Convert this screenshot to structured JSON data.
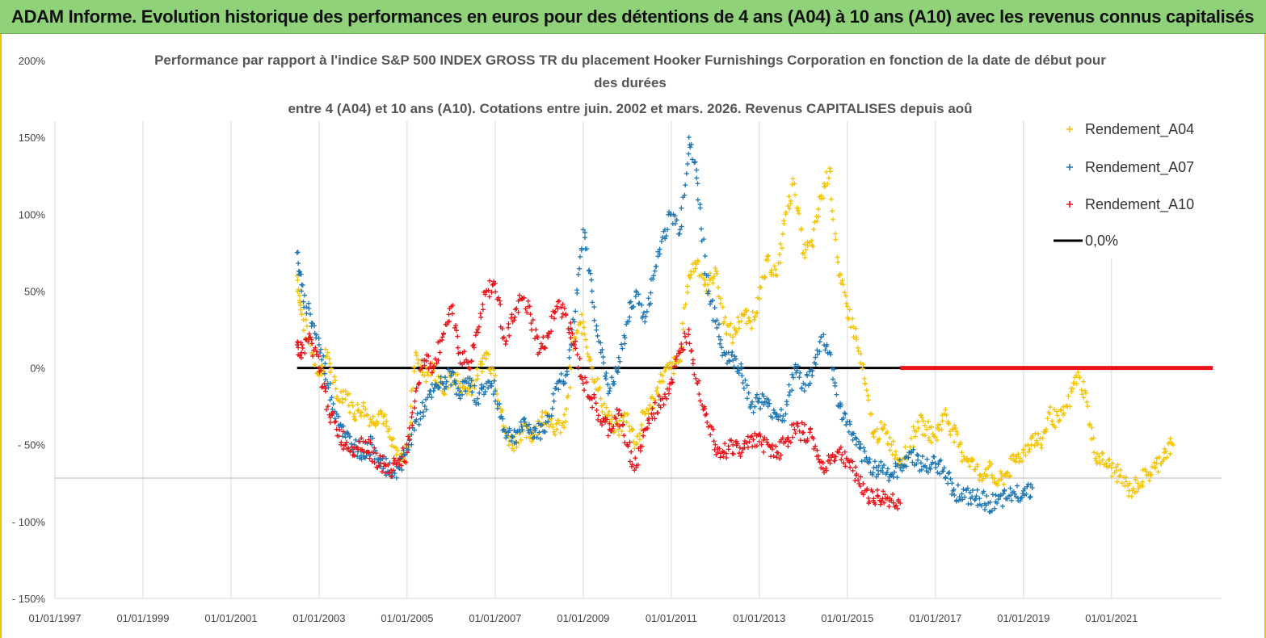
{
  "banner": {
    "title": "ADAM Informe. Evolution historique des performances en euros pour des détentions de 4 ans (A04) à 10 ans (A10) avec les revenus connus capitalisés"
  },
  "colors": {
    "A04": "#f5c300",
    "A07": "#1f77b4",
    "A10": "#e8141a",
    "zero": "#000000",
    "grid": "#d9d9d9"
  },
  "chart_data": {
    "type": "scatter",
    "title_lines": [
      "Performance par rapport à l'indice S&P 500 INDEX GROSS TR  du placement Hooker Furnishings Corporation en fonction de la date de début pour",
      "des durées",
      "entre 4 (A04) et 10 ans (A10). Cotations entre juin. 2002 et mars. 2026. Revenus CAPITALISES depuis aoû"
    ],
    "y_tick_labels": [
      "200%",
      "150%",
      "100%",
      "50%",
      "0%",
      "- 50%",
      "- 100%",
      "- 150%"
    ],
    "y_tick_values": [
      200,
      150,
      100,
      50,
      0,
      -50,
      -100,
      -150
    ],
    "x_tick_labels": [
      "01/01/1997",
      "01/01/1999",
      "01/01/2001",
      "01/01/2003",
      "01/01/2005",
      "01/01/2007",
      "01/01/2009",
      "01/01/2011",
      "01/01/2013",
      "01/01/2015",
      "01/01/2017",
      "01/01/2019",
      "01/01/2021"
    ],
    "x_tick_values": [
      1997,
      1999,
      2001,
      2003,
      2005,
      2007,
      2009,
      2011,
      2013,
      2015,
      2017,
      2019,
      2021
    ],
    "xlim": [
      1997,
      2023.5
    ],
    "ylim": [
      -150,
      200
    ],
    "legend": {
      "placement": "top-right",
      "entries": [
        "Rendement_A04",
        "Rendement_A07",
        "Rendement_A10",
        "0,0%"
      ]
    },
    "series": [
      {
        "name": "Rendement_A04",
        "x": [
          2002.5,
          2002.6,
          2002.8,
          2003.0,
          2003.2,
          2003.4,
          2003.6,
          2003.8,
          2004.0,
          2004.2,
          2004.4,
          2004.6,
          2004.8,
          2005.0,
          2005.2,
          2005.4,
          2005.6,
          2005.8,
          2006.0,
          2006.2,
          2006.4,
          2006.6,
          2006.8,
          2007.0,
          2007.2,
          2007.4,
          2007.6,
          2007.8,
          2008.0,
          2008.2,
          2008.4,
          2008.6,
          2008.8,
          2009.0,
          2009.2,
          2009.4,
          2009.6,
          2009.8,
          2010.0,
          2010.2,
          2010.4,
          2010.6,
          2010.8,
          2011.0,
          2011.2,
          2011.4,
          2011.6,
          2011.8,
          2012.0,
          2012.2,
          2012.4,
          2012.6,
          2012.8,
          2013.0,
          2013.2,
          2013.4,
          2013.6,
          2013.8,
          2014.0,
          2014.2,
          2014.4,
          2014.6,
          2014.8,
          2015.0,
          2015.2,
          2015.4,
          2015.6,
          2015.8,
          2016.0,
          2016.2,
          2016.4,
          2016.6,
          2016.8,
          2017.0,
          2017.2,
          2017.4,
          2017.6,
          2017.8,
          2018.0,
          2018.2,
          2018.4,
          2018.6,
          2018.8,
          2019.0,
          2019.2,
          2019.4,
          2019.6,
          2019.8,
          2020.0,
          2020.2,
          2020.4,
          2020.6,
          2020.8,
          2021.0,
          2021.2,
          2021.4,
          2021.6,
          2021.8,
          2022.0,
          2022.2,
          2022.4
        ],
        "y": [
          60,
          35,
          15,
          -5,
          10,
          -20,
          -15,
          -30,
          -25,
          -35,
          -28,
          -45,
          -60,
          -55,
          10,
          -5,
          0,
          -15,
          -5,
          -10,
          -15,
          -5,
          10,
          -5,
          -40,
          -50,
          -40,
          -45,
          -35,
          -30,
          -40,
          -35,
          20,
          30,
          0,
          -20,
          -35,
          -40,
          -30,
          -50,
          -30,
          -20,
          -5,
          0,
          5,
          60,
          70,
          50,
          65,
          30,
          20,
          35,
          30,
          45,
          70,
          60,
          100,
          120,
          75,
          80,
          110,
          130,
          60,
          40,
          20,
          -10,
          -45,
          -40,
          -50,
          -60,
          -55,
          -35,
          -40,
          -45,
          -30,
          -40,
          -55,
          -60,
          -70,
          -65,
          -75,
          -70,
          -60,
          -55,
          -45,
          -50,
          -30,
          -35,
          -25,
          -5,
          -15,
          -55,
          -60,
          -65,
          -70,
          -80,
          -75,
          -70,
          -65,
          -55,
          -50
        ]
      },
      {
        "name": "Rendement_A07",
        "x": [
          2002.5,
          2002.6,
          2002.8,
          2003.0,
          2003.2,
          2003.4,
          2003.6,
          2003.8,
          2004.0,
          2004.2,
          2004.4,
          2004.6,
          2004.8,
          2005.0,
          2005.2,
          2005.4,
          2005.6,
          2005.8,
          2006.0,
          2006.2,
          2006.4,
          2006.6,
          2006.8,
          2007.0,
          2007.2,
          2007.4,
          2007.6,
          2007.8,
          2008.0,
          2008.2,
          2008.4,
          2008.6,
          2008.8,
          2009.0,
          2009.2,
          2009.4,
          2009.6,
          2009.8,
          2010.0,
          2010.2,
          2010.4,
          2010.6,
          2010.8,
          2011.0,
          2011.2,
          2011.4,
          2011.6,
          2011.8,
          2012.0,
          2012.2,
          2012.4,
          2012.6,
          2012.8,
          2013.0,
          2013.2,
          2013.4,
          2013.6,
          2013.8,
          2014.0,
          2014.2,
          2014.4,
          2014.6,
          2014.8,
          2015.0,
          2015.2,
          2015.4,
          2015.6,
          2015.8,
          2016.0,
          2016.2,
          2016.4,
          2016.6,
          2016.8,
          2017.0,
          2017.2,
          2017.4,
          2017.6,
          2017.8,
          2018.0,
          2018.2,
          2018.4,
          2018.6,
          2018.8,
          2019.0,
          2019.2
        ],
        "y": [
          75,
          50,
          35,
          15,
          -10,
          -30,
          -45,
          -50,
          -55,
          -50,
          -60,
          -68,
          -65,
          -55,
          -35,
          -25,
          -15,
          -10,
          -5,
          -15,
          -10,
          -20,
          -10,
          -15,
          -40,
          -45,
          -38,
          -40,
          -42,
          -35,
          -10,
          -5,
          30,
          90,
          50,
          10,
          -15,
          0,
          30,
          50,
          30,
          60,
          85,
          100,
          90,
          150,
          120,
          60,
          30,
          10,
          5,
          0,
          -25,
          -20,
          -25,
          -30,
          -30,
          0,
          -10,
          -5,
          20,
          10,
          -25,
          -35,
          -50,
          -60,
          -65,
          -65,
          -70,
          -65,
          -55,
          -60,
          -65,
          -62,
          -65,
          -80,
          -82,
          -85,
          -85,
          -88,
          -88,
          -85,
          -82,
          -80,
          -78
        ]
      },
      {
        "name": "Rendement_A10",
        "x": [
          2002.5,
          2002.6,
          2002.8,
          2003.0,
          2003.2,
          2003.4,
          2003.6,
          2003.8,
          2004.0,
          2004.2,
          2004.4,
          2004.6,
          2004.8,
          2005.0,
          2005.2,
          2005.4,
          2005.6,
          2005.8,
          2006.0,
          2006.2,
          2006.4,
          2006.6,
          2006.8,
          2007.0,
          2007.2,
          2007.4,
          2007.6,
          2007.8,
          2008.0,
          2008.2,
          2008.4,
          2008.6,
          2008.8,
          2009.0,
          2009.2,
          2009.4,
          2009.6,
          2009.8,
          2010.0,
          2010.2,
          2010.4,
          2010.6,
          2010.8,
          2011.0,
          2011.2,
          2011.4,
          2011.6,
          2011.8,
          2012.0,
          2012.2,
          2012.4,
          2012.6,
          2012.8,
          2013.0,
          2013.2,
          2013.4,
          2013.6,
          2013.8,
          2014.0,
          2014.2,
          2014.4,
          2014.6,
          2014.8,
          2015.0,
          2015.2,
          2015.4,
          2015.6,
          2015.8,
          2016.0,
          2016.2
        ],
        "y": [
          15,
          10,
          20,
          0,
          -25,
          -40,
          -50,
          -52,
          -48,
          -55,
          -62,
          -68,
          -60,
          -55,
          -15,
          5,
          0,
          20,
          40,
          10,
          0,
          25,
          50,
          55,
          20,
          30,
          45,
          35,
          10,
          20,
          40,
          35,
          15,
          -10,
          -20,
          -35,
          -40,
          -30,
          -50,
          -65,
          -40,
          -30,
          -20,
          -10,
          10,
          25,
          -10,
          -30,
          -50,
          -55,
          -50,
          -55,
          -45,
          -48,
          -50,
          -55,
          -48,
          -40,
          -42,
          -45,
          -65,
          -60,
          -55,
          -60,
          -70,
          -80,
          -85,
          -85,
          -86,
          -88
        ]
      },
      {
        "name": "0,0%",
        "x": [
          2002.5,
          2023.3
        ],
        "y": [
          0,
          0
        ]
      }
    ],
    "zero_region_A10": {
      "x_start": 2016.2,
      "x_end": 2023.3,
      "y": 0
    }
  }
}
